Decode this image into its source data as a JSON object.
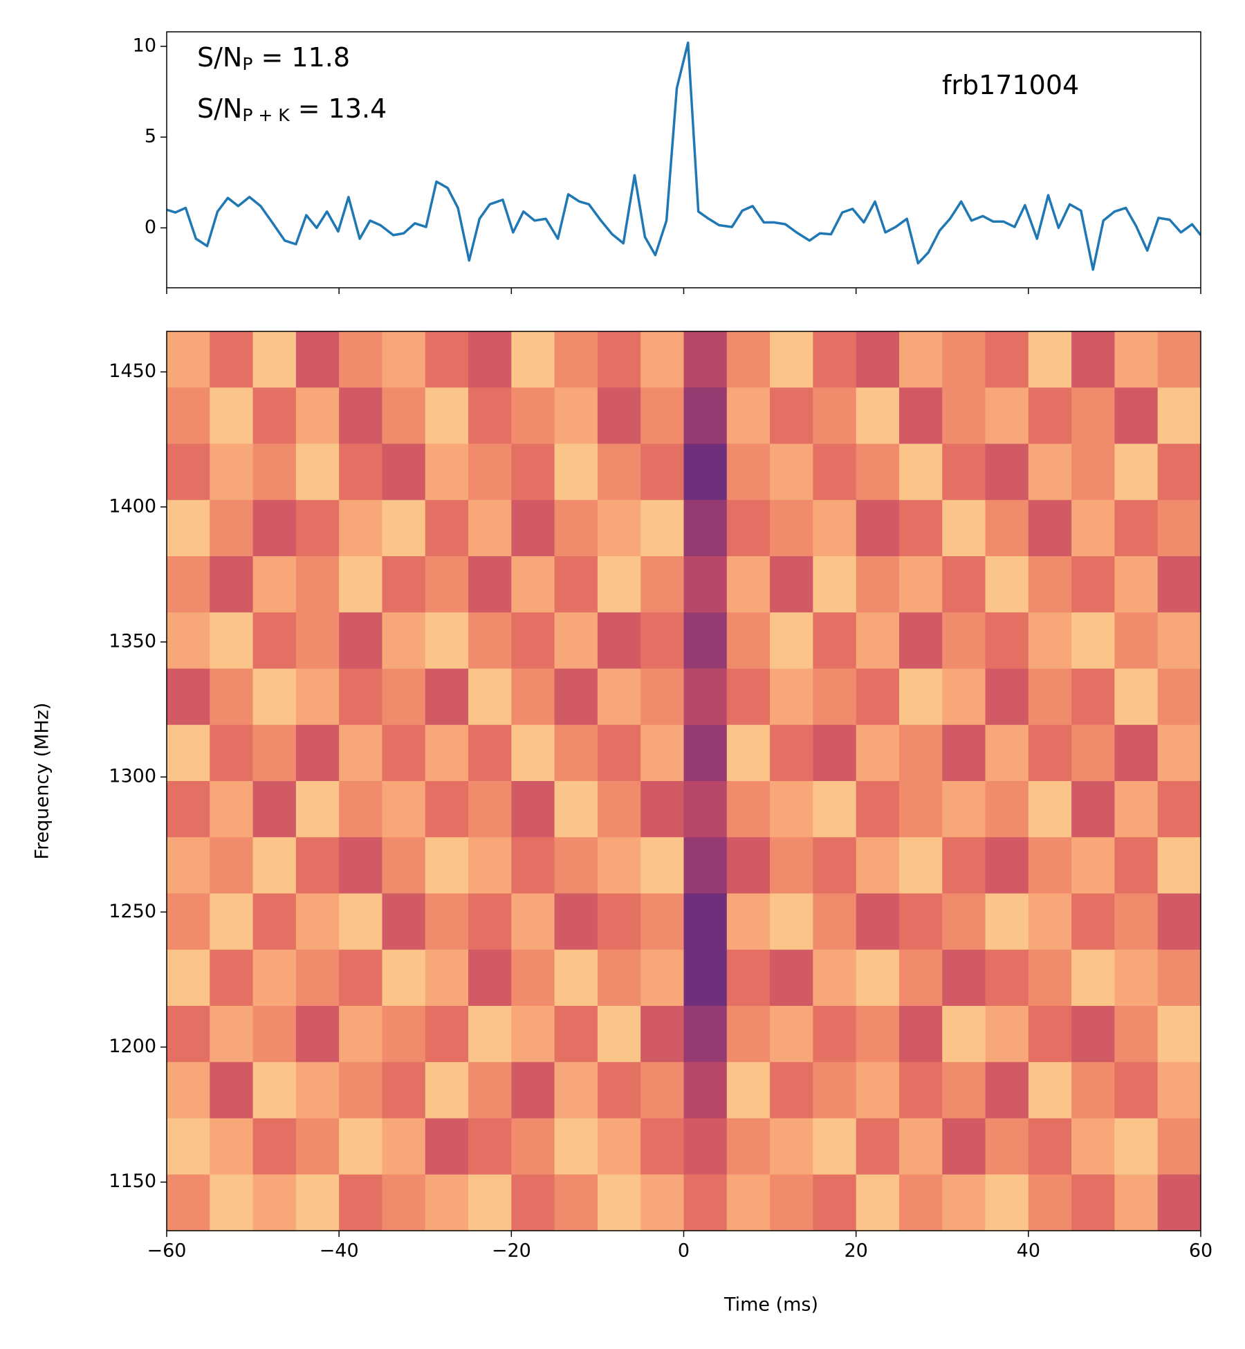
{
  "chart_data": [
    {
      "type": "line",
      "annotations": [
        [
          "S/N",
          "P",
          " = 11.8"
        ],
        [
          "S/N",
          "P + K",
          " = 13.4"
        ],
        [
          "frb171004"
        ]
      ],
      "x": [
        -60,
        -59,
        -57.8,
        -56.6,
        -55.3,
        -54.1,
        -52.9,
        -51.7,
        -50.4,
        -49.1,
        -47.9,
        -46.3,
        -45,
        -43.8,
        -42.6,
        -41.4,
        -40.1,
        -38.9,
        -37.6,
        -36.4,
        -35.2,
        -33.7,
        -32.5,
        -31.2,
        -29.9,
        -28.7,
        -27.4,
        -26.2,
        -24.9,
        -23.7,
        -22.5,
        -21,
        -19.8,
        -18.6,
        -17.3,
        -16,
        -14.6,
        -13.4,
        -12.1,
        -11,
        -9.6,
        -8.3,
        -7,
        -5.7,
        -4.5,
        -3.3,
        -2,
        -0.8,
        0.5,
        1.7,
        2.9,
        4.1,
        5.6,
        6.8,
        8,
        9.3,
        10.5,
        11.8,
        13.1,
        14.6,
        15.8,
        17.1,
        18.4,
        19.6,
        20.9,
        22.2,
        23.4,
        24.6,
        25.9,
        27.2,
        28.4,
        29.7,
        30.9,
        32.2,
        33.4,
        34.7,
        35.9,
        37.1,
        38.4,
        39.6,
        41,
        42.3,
        43.5,
        44.8,
        46.1,
        47.5,
        48.7,
        50,
        51.3,
        52.5,
        53.8,
        55.1,
        56.4,
        57.7,
        59,
        60
      ],
      "series": [
        {
          "color": "#1f77b4",
          "values": [
            1.0,
            0.85,
            1.1,
            -0.6,
            -1.0,
            0.9,
            1.65,
            1.2,
            1.7,
            1.2,
            0.4,
            -0.7,
            -0.9,
            0.7,
            0,
            0.9,
            -0.2,
            1.7,
            -0.6,
            0.4,
            0.15,
            -0.4,
            -0.3,
            0.25,
            0.05,
            2.55,
            2.2,
            1.1,
            -1.8,
            0.5,
            1.3,
            1.55,
            -0.25,
            0.9,
            0.4,
            0.5,
            -0.6,
            1.85,
            1.45,
            1.3,
            0.4,
            -0.35,
            -0.85,
            2.9,
            -0.5,
            -1.5,
            0.4,
            7.7,
            10.2,
            0.9,
            0.5,
            0.15,
            0.05,
            0.95,
            1.2,
            0.3,
            0.3,
            0.2,
            -0.25,
            -0.7,
            -0.3,
            -0.35,
            0.85,
            1.05,
            0.3,
            1.45,
            -0.25,
            0.05,
            0.5,
            -1.95,
            -1.35,
            -0.15,
            0.5,
            1.45,
            0.4,
            0.65,
            0.35,
            0.35,
            0.05,
            1.25,
            -0.6,
            1.8,
            0,
            1.3,
            0.95,
            -2.3,
            0.4,
            0.9,
            1.1,
            0.1,
            -1.25,
            0.55,
            0.45,
            -0.25,
            0.2,
            -0.4
          ]
        }
      ],
      "xlim": [
        -60,
        60
      ],
      "xticks": [
        -60,
        -40,
        -20,
        0,
        20,
        40,
        60
      ],
      "ylim": [
        -3.3,
        10.8
      ],
      "yticks": [
        0,
        5,
        10
      ]
    },
    {
      "type": "heatmap",
      "xlabel": "Time (ms)",
      "ylabel": "Frequency (MHz)",
      "xlim": [
        -60,
        60
      ],
      "xticks": [
        {
          "value": -60,
          "label": "−60"
        },
        {
          "value": -40,
          "label": "−40"
        },
        {
          "value": -20,
          "label": "−20"
        },
        0,
        20,
        40,
        60
      ],
      "ylim": [
        1132,
        1465
      ],
      "yticks": [
        1150,
        1200,
        1250,
        1300,
        1350,
        1400,
        1450
      ],
      "zlim": [
        0,
        9
      ],
      "colormap": [
        "#fdf5b8",
        "#fde0a0",
        "#fbc58a",
        "#f8a878",
        "#f08c6c",
        "#e47064",
        "#d15a64",
        "#b84769",
        "#963b72",
        "#6f2f7a"
      ],
      "z": [
        [
          3,
          5,
          2,
          6,
          4,
          3,
          5,
          6,
          2,
          4,
          5,
          3,
          7,
          4,
          2,
          5,
          6,
          3,
          4,
          5,
          2,
          6,
          3,
          4
        ],
        [
          4,
          2,
          5,
          3,
          6,
          4,
          2,
          5,
          4,
          3,
          6,
          4,
          8,
          3,
          5,
          4,
          2,
          6,
          4,
          3,
          5,
          4,
          6,
          2
        ],
        [
          5,
          3,
          4,
          2,
          5,
          6,
          3,
          4,
          5,
          2,
          4,
          5,
          9,
          4,
          3,
          5,
          4,
          2,
          5,
          6,
          3,
          4,
          2,
          5
        ],
        [
          2,
          4,
          6,
          5,
          3,
          2,
          5,
          3,
          6,
          4,
          3,
          2,
          8,
          5,
          4,
          3,
          6,
          5,
          2,
          4,
          6,
          3,
          5,
          4
        ],
        [
          4,
          6,
          3,
          4,
          2,
          5,
          4,
          6,
          3,
          5,
          2,
          4,
          7,
          3,
          6,
          2,
          4,
          3,
          5,
          2,
          4,
          5,
          3,
          6
        ],
        [
          3,
          2,
          5,
          4,
          6,
          3,
          2,
          4,
          5,
          3,
          6,
          5,
          8,
          4,
          2,
          5,
          3,
          6,
          4,
          5,
          3,
          2,
          4,
          3
        ],
        [
          6,
          4,
          2,
          3,
          5,
          4,
          6,
          2,
          4,
          6,
          3,
          4,
          7,
          5,
          3,
          4,
          5,
          2,
          3,
          6,
          4,
          5,
          2,
          4
        ],
        [
          2,
          5,
          4,
          6,
          3,
          5,
          3,
          5,
          2,
          4,
          5,
          3,
          8,
          2,
          5,
          6,
          3,
          4,
          6,
          3,
          5,
          4,
          6,
          3
        ],
        [
          5,
          3,
          6,
          2,
          4,
          3,
          5,
          4,
          6,
          2,
          4,
          6,
          7,
          4,
          3,
          2,
          5,
          4,
          3,
          4,
          2,
          6,
          3,
          5
        ],
        [
          3,
          4,
          2,
          5,
          6,
          4,
          2,
          3,
          5,
          4,
          3,
          2,
          8,
          6,
          4,
          5,
          3,
          2,
          5,
          6,
          4,
          3,
          5,
          2
        ],
        [
          4,
          2,
          5,
          3,
          2,
          6,
          4,
          5,
          3,
          6,
          5,
          4,
          9,
          3,
          2,
          4,
          6,
          5,
          4,
          2,
          3,
          5,
          4,
          6
        ],
        [
          2,
          5,
          3,
          4,
          5,
          2,
          3,
          6,
          4,
          2,
          4,
          3,
          9,
          5,
          6,
          3,
          2,
          4,
          6,
          5,
          4,
          2,
          3,
          4
        ],
        [
          5,
          3,
          4,
          6,
          3,
          4,
          5,
          2,
          3,
          5,
          2,
          6,
          8,
          4,
          3,
          5,
          4,
          6,
          2,
          3,
          5,
          6,
          4,
          2
        ],
        [
          3,
          6,
          2,
          3,
          4,
          5,
          2,
          4,
          6,
          3,
          5,
          4,
          7,
          2,
          5,
          4,
          3,
          5,
          4,
          6,
          2,
          4,
          5,
          3
        ],
        [
          2,
          3,
          5,
          4,
          2,
          3,
          6,
          5,
          4,
          2,
          3,
          5,
          6,
          4,
          3,
          2,
          5,
          3,
          6,
          4,
          5,
          3,
          2,
          4
        ],
        [
          4,
          2,
          3,
          2,
          5,
          4,
          3,
          2,
          5,
          4,
          2,
          3,
          5,
          3,
          4,
          5,
          2,
          4,
          3,
          2,
          4,
          5,
          3,
          6
        ]
      ]
    }
  ]
}
